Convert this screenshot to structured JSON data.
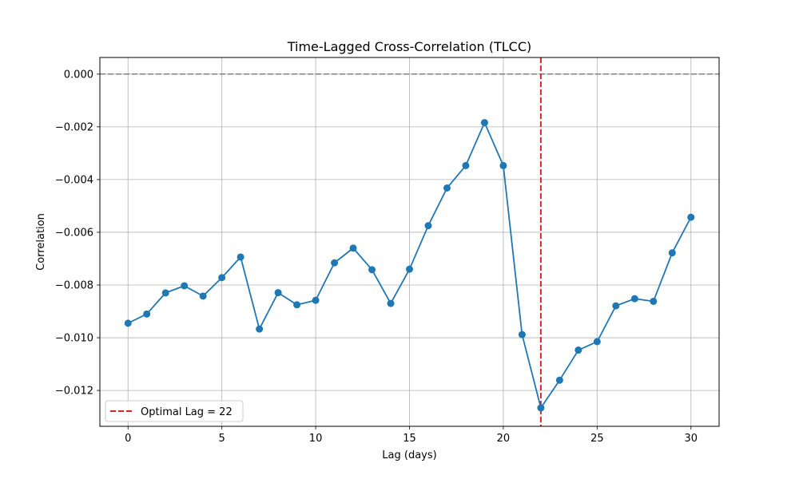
{
  "chart_data": {
    "type": "line",
    "title": "Time-Lagged Cross-Correlation (TLCC)",
    "xlabel": "Lag (days)",
    "ylabel": "Correlation",
    "xlim": [
      -1.5,
      31.5
    ],
    "ylim": [
      -0.01336,
      0.00063
    ],
    "xticks": [
      0,
      5,
      10,
      15,
      20,
      25,
      30
    ],
    "yticks": [
      0.0,
      -0.002,
      -0.004,
      -0.006,
      -0.008,
      -0.01,
      -0.012
    ],
    "ytick_labels": [
      "0.000",
      "−0.002",
      "−0.004",
      "−0.006",
      "−0.008",
      "−0.010",
      "−0.012"
    ],
    "grid": true,
    "legend_position": "lower-left",
    "series": [
      {
        "color": "#1f77b4",
        "marker": "circle",
        "x": [
          0,
          1,
          2,
          3,
          4,
          5,
          6,
          7,
          8,
          9,
          10,
          11,
          12,
          13,
          14,
          15,
          16,
          17,
          18,
          19,
          20,
          21,
          22,
          23,
          24,
          25,
          26,
          27,
          28,
          29,
          30
        ],
        "values": [
          -0.00945,
          -0.0091,
          -0.0083,
          -0.00803,
          -0.00842,
          -0.00772,
          -0.00694,
          -0.00967,
          -0.00829,
          -0.00875,
          -0.00858,
          -0.00716,
          -0.0066,
          -0.00742,
          -0.0087,
          -0.0074,
          -0.00575,
          -0.00432,
          -0.00347,
          -0.00184,
          -0.00347,
          -0.00988,
          -0.01266,
          -0.01161,
          -0.01047,
          -0.01015,
          -0.00879,
          -0.00852,
          -0.00862,
          -0.00678,
          -0.00543
        ]
      }
    ],
    "reference_lines": [
      {
        "orientation": "horizontal",
        "value": 0.0,
        "color": "#808080",
        "style": "dashed"
      },
      {
        "orientation": "vertical",
        "value": 22,
        "color": "#d62728",
        "style": "dashed",
        "label": "Optimal Lag = 22"
      }
    ]
  }
}
